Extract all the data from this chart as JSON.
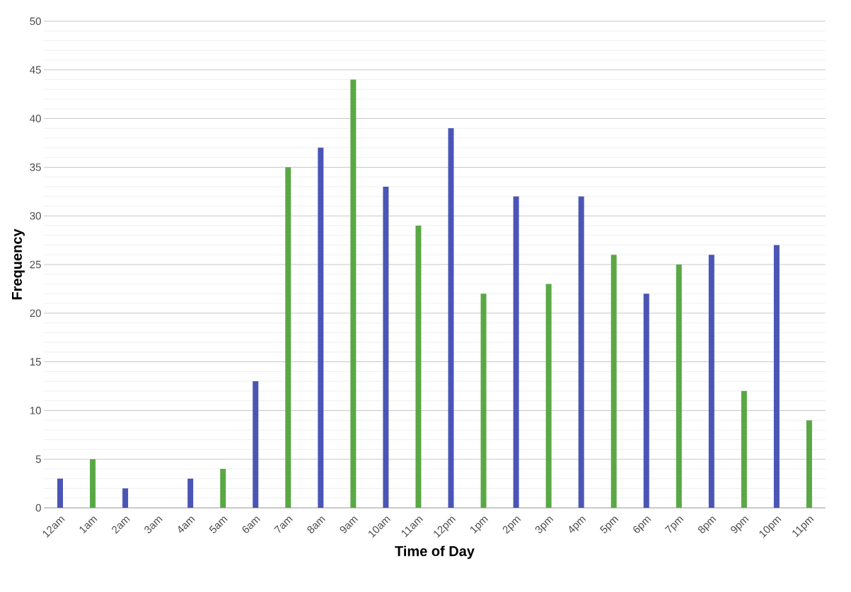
{
  "chart_data": {
    "type": "bar",
    "xlabel": "Time of Day",
    "ylabel": "Frequency",
    "categories": [
      "12am",
      "1am",
      "2am",
      "3am",
      "4am",
      "5am",
      "6am",
      "7am",
      "8am",
      "9am",
      "10am",
      "11am",
      "12pm",
      "1pm",
      "2pm",
      "3pm",
      "4pm",
      "5pm",
      "6pm",
      "7pm",
      "8pm",
      "9pm",
      "10pm",
      "11pm"
    ],
    "values": [
      3,
      5,
      2,
      0,
      3,
      4,
      13,
      35,
      37,
      44,
      33,
      29,
      39,
      22,
      32,
      23,
      32,
      26,
      22,
      25,
      26,
      12,
      27,
      9
    ],
    "colors": [
      "#4a55b5",
      "#5aa845",
      "#4a55b5",
      "#5aa845",
      "#4a55b5",
      "#5aa845",
      "#4a55b5",
      "#5aa845",
      "#4a55b5",
      "#5aa845",
      "#4a55b5",
      "#5aa845",
      "#4a55b5",
      "#5aa845",
      "#4a55b5",
      "#5aa845",
      "#4a55b5",
      "#5aa845",
      "#4a55b5",
      "#5aa845",
      "#4a55b5",
      "#5aa845",
      "#4a55b5",
      "#5aa845"
    ],
    "ylim": [
      0,
      50
    ],
    "yticks": [
      0,
      5,
      10,
      15,
      20,
      25,
      30,
      35,
      40,
      45,
      50
    ],
    "grid": "y"
  }
}
